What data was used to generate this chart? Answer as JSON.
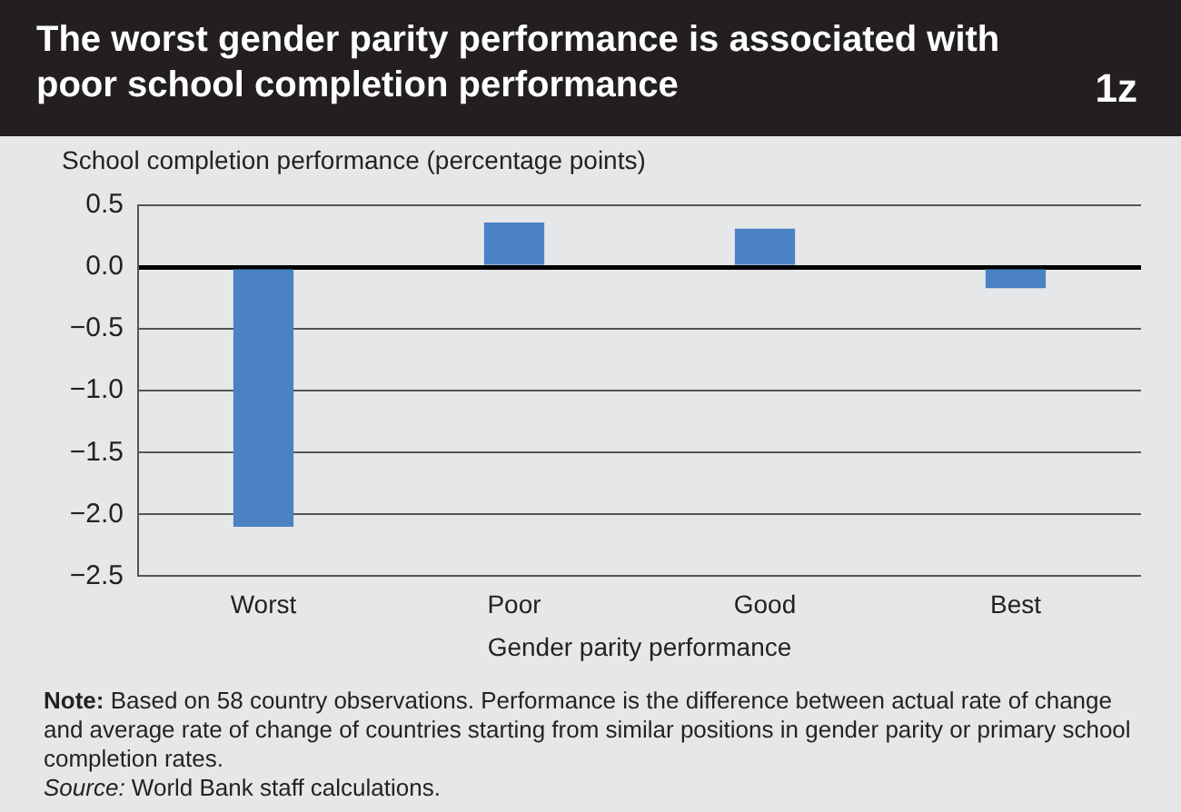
{
  "chart_data": {
    "type": "bar",
    "title": "The worst gender parity performance is associated with poor school completion performance",
    "subtitle": "1z",
    "ylabel": "School completion performance (percentage points)",
    "xlabel": "Gender parity performance",
    "categories": [
      "Worst",
      "Poor",
      "Good",
      "Best"
    ],
    "values": [
      -2.1,
      0.36,
      0.31,
      -0.17
    ],
    "color": "#4a82c4",
    "ylim": [
      -2.5,
      0.5
    ],
    "yticks": [
      {
        "value": -2.5,
        "label": "−2.5"
      },
      {
        "value": -2,
        "label": "−2.0"
      },
      {
        "value": -1.5,
        "label": "−1.5"
      },
      {
        "value": -1,
        "label": "−1.0"
      },
      {
        "value": -0.5,
        "label": "−0.5"
      },
      {
        "value": 0,
        "label": "0.0"
      },
      {
        "value": 0.5,
        "label": "0.5"
      }
    ],
    "grid": "y",
    "legend": false,
    "annotations": [
      "Note: Based on 58 country observations. Performance is the difference between actual rate of change and average rate of change of countries starting from similar positions in gender parity or primary school completion rates.",
      "Source: World Bank staff calculations."
    ]
  }
}
